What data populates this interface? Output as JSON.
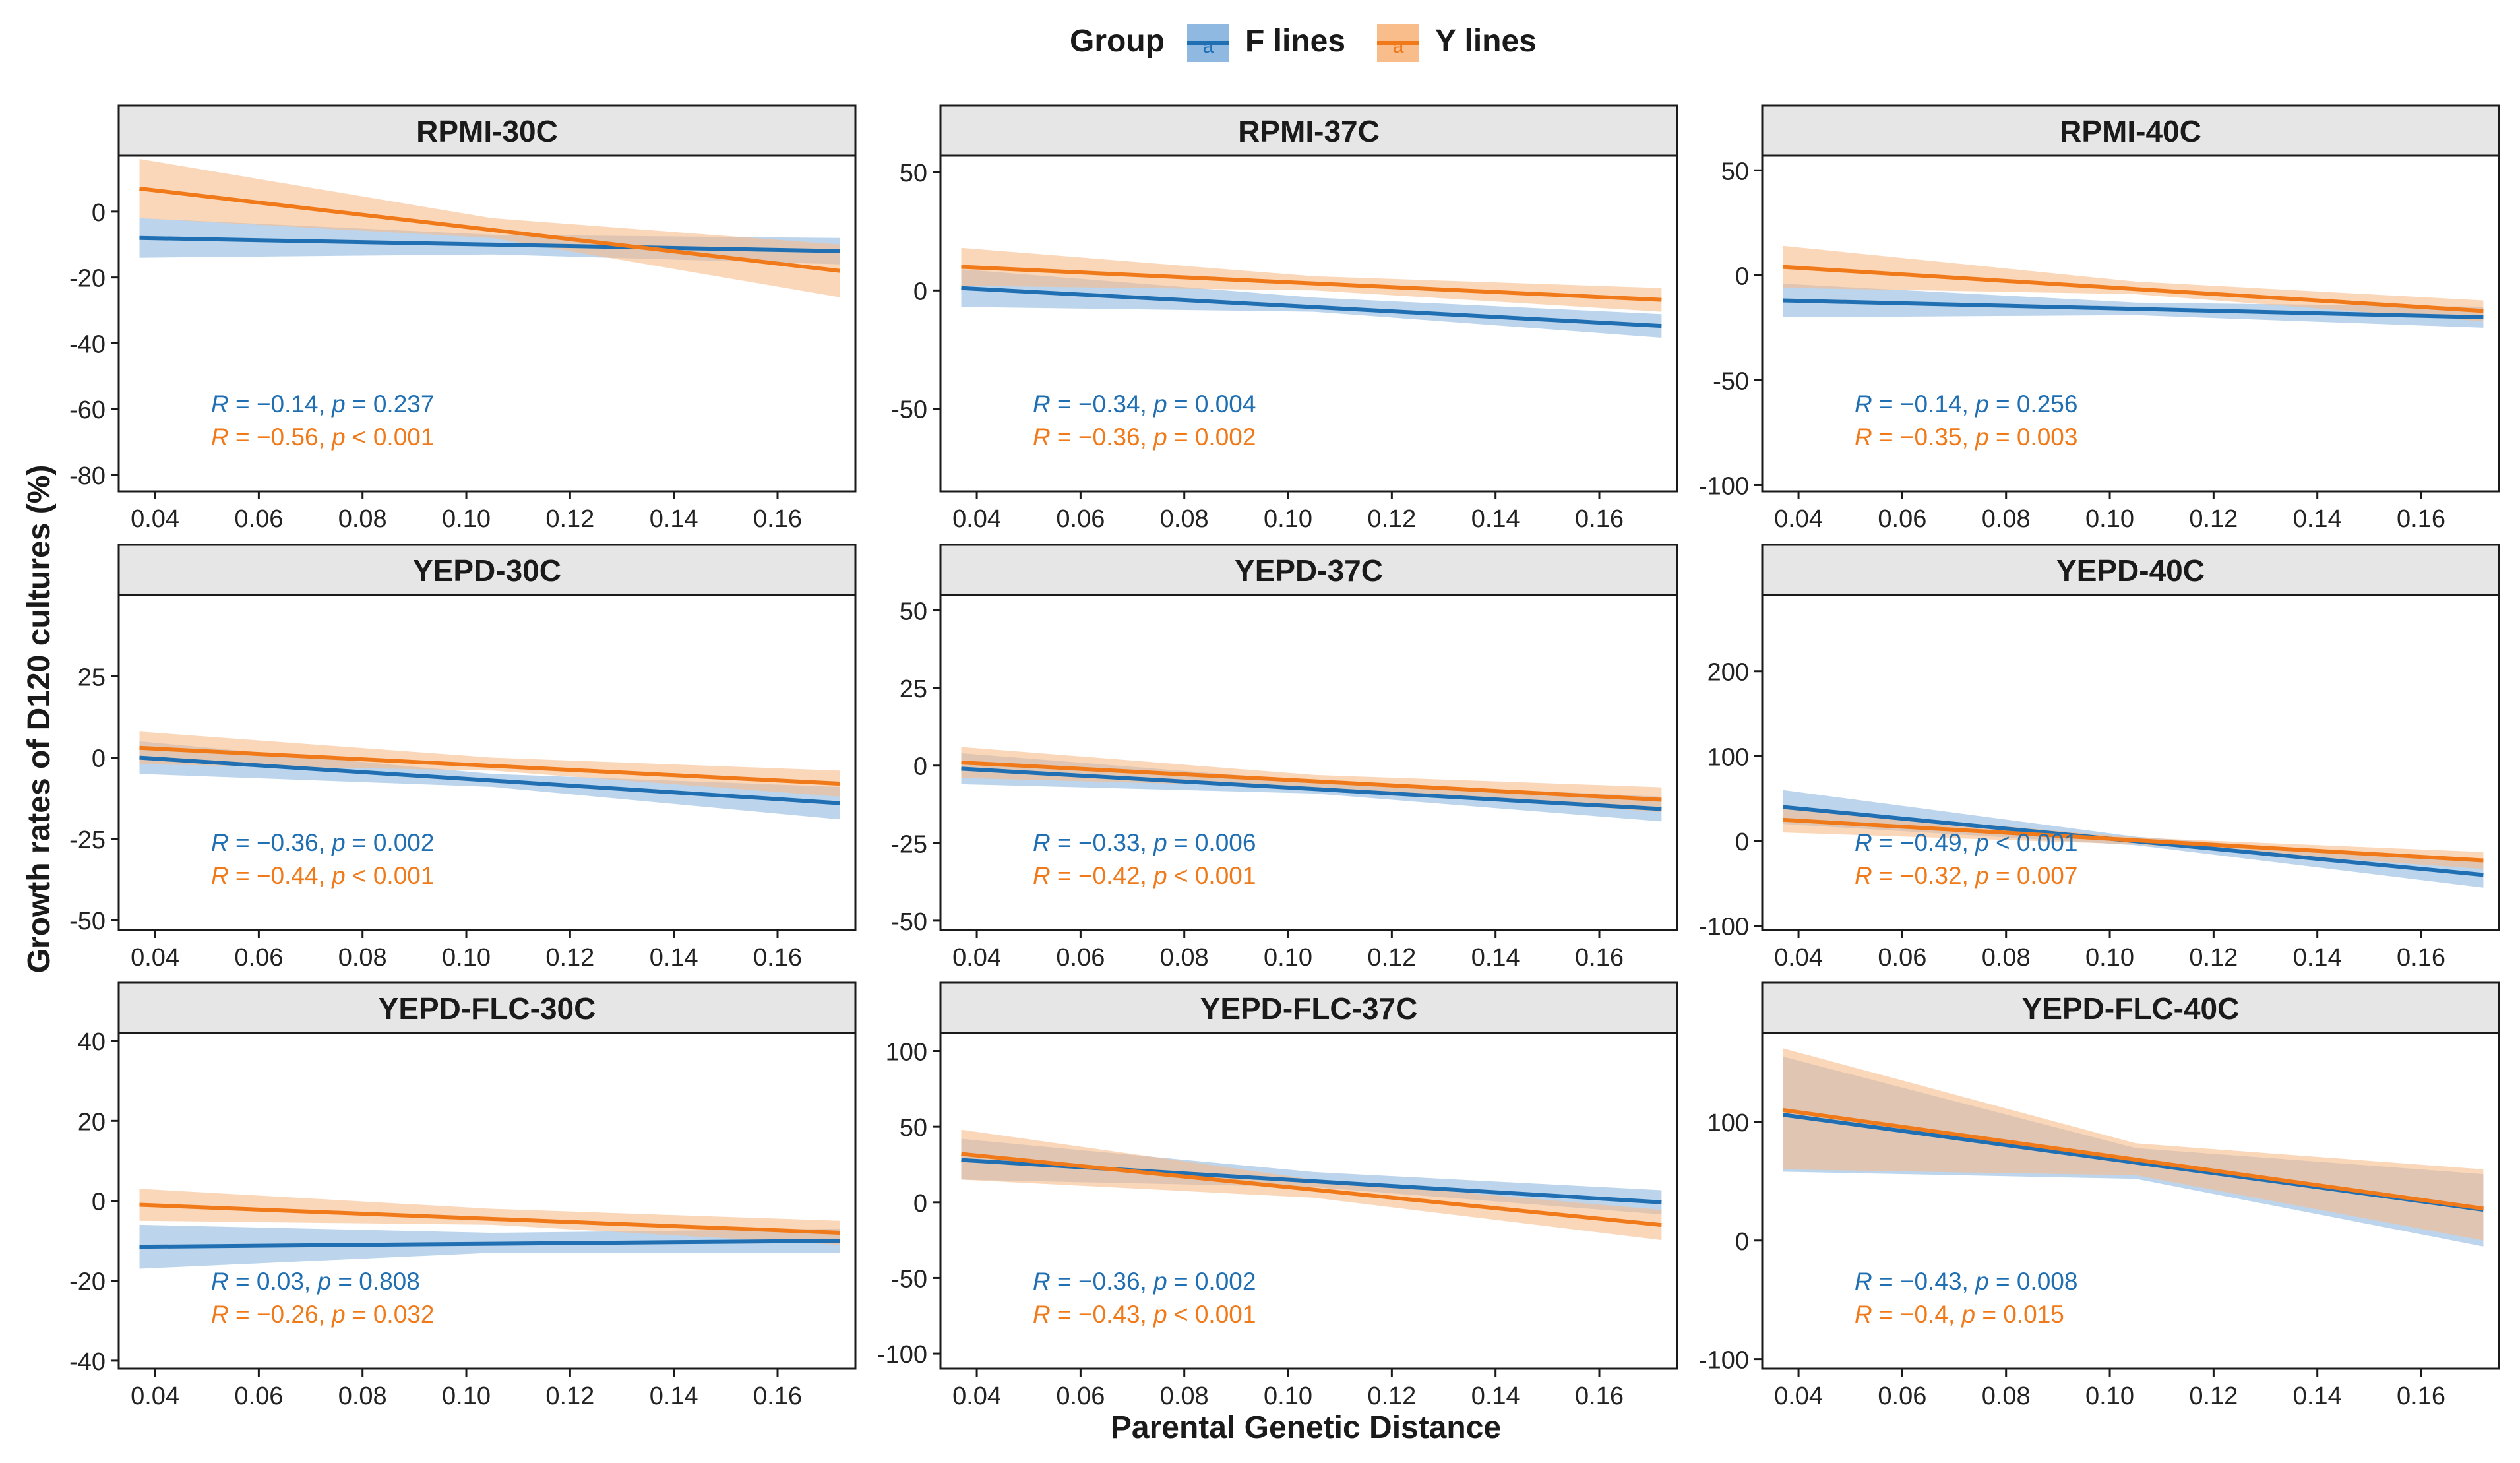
{
  "legend": {
    "title": "Group",
    "items": [
      {
        "label": "F lines",
        "color": "#1f6fb2",
        "fill": "#8fb9e0"
      },
      {
        "label": "Y lines",
        "color": "#f07a1a",
        "fill": "#f9bd8c"
      }
    ],
    "glyph": "a"
  },
  "y_axis_label": "Growth rates of D120 cultures (%)",
  "x_axis_label": "Parental Genetic Distance",
  "chart_data": [
    {
      "type": "scatter",
      "title": "RPMI-30C",
      "xlim": [
        0.033,
        0.175
      ],
      "ylim": [
        -85,
        17
      ],
      "xticks": [
        0.04,
        0.06,
        0.08,
        0.1,
        0.12,
        0.14,
        0.16
      ],
      "yticks": [
        0,
        -20,
        -40,
        -60,
        -80
      ],
      "series": [
        {
          "name": "F lines",
          "fit": [
            [
              0.037,
              -8
            ],
            [
              0.172,
              -12
            ]
          ],
          "ci": [
            [
              0.037,
              -14,
              -2
            ],
            [
              0.105,
              -13,
              -7
            ],
            [
              0.172,
              -16,
              -8
            ]
          ],
          "stat": {
            "R": "−0.14",
            "p": "= 0.237"
          }
        },
        {
          "name": "Y lines",
          "fit": [
            [
              0.037,
              7
            ],
            [
              0.172,
              -18
            ]
          ],
          "ci": [
            [
              0.037,
              -2,
              16
            ],
            [
              0.105,
              -8,
              -2
            ],
            [
              0.172,
              -26,
              -10
            ]
          ],
          "stat": {
            "R": "−0.56",
            "p": "< 0.001"
          }
        }
      ]
    },
    {
      "type": "scatter",
      "title": "RPMI-37C",
      "xlim": [
        0.033,
        0.175
      ],
      "ylim": [
        -85,
        57
      ],
      "xticks": [
        0.04,
        0.06,
        0.08,
        0.1,
        0.12,
        0.14,
        0.16
      ],
      "yticks": [
        50,
        0,
        -50
      ],
      "series": [
        {
          "name": "F lines",
          "fit": [
            [
              0.037,
              1
            ],
            [
              0.172,
              -15
            ]
          ],
          "ci": [
            [
              0.037,
              -7,
              9
            ],
            [
              0.105,
              -9,
              -3
            ],
            [
              0.172,
              -20,
              -10
            ]
          ],
          "stat": {
            "R": "−0.34",
            "p": "= 0.004"
          }
        },
        {
          "name": "Y lines",
          "fit": [
            [
              0.037,
              10
            ],
            [
              0.172,
              -4
            ]
          ],
          "ci": [
            [
              0.037,
              2,
              18
            ],
            [
              0.105,
              0,
              6
            ],
            [
              0.172,
              -9,
              1
            ]
          ],
          "stat": {
            "R": "−0.36",
            "p": "= 0.002"
          }
        }
      ]
    },
    {
      "type": "scatter",
      "title": "RPMI-40C",
      "xlim": [
        0.033,
        0.175
      ],
      "ylim": [
        -103,
        57
      ],
      "xticks": [
        0.04,
        0.06,
        0.08,
        0.1,
        0.12,
        0.14,
        0.16
      ],
      "yticks": [
        50,
        0,
        -50,
        -100
      ],
      "series": [
        {
          "name": "F lines",
          "fit": [
            [
              0.037,
              -12
            ],
            [
              0.172,
              -20
            ]
          ],
          "ci": [
            [
              0.037,
              -20,
              -4
            ],
            [
              0.105,
              -19,
              -13
            ],
            [
              0.172,
              -25,
              -15
            ]
          ],
          "stat": {
            "R": "−0.14",
            "p": "= 0.256"
          }
        },
        {
          "name": "Y lines",
          "fit": [
            [
              0.037,
              4
            ],
            [
              0.172,
              -17
            ]
          ],
          "ci": [
            [
              0.037,
              -6,
              14
            ],
            [
              0.105,
              -9,
              -3
            ],
            [
              0.172,
              -22,
              -12
            ]
          ],
          "stat": {
            "R": "−0.35",
            "p": "= 0.003"
          }
        }
      ]
    },
    {
      "type": "scatter",
      "title": "YEPD-30C",
      "xlim": [
        0.033,
        0.175
      ],
      "ylim": [
        -53,
        50
      ],
      "xticks": [
        0.04,
        0.06,
        0.08,
        0.1,
        0.12,
        0.14,
        0.16
      ],
      "yticks": [
        25,
        0,
        -25,
        -50
      ],
      "series": [
        {
          "name": "F lines",
          "fit": [
            [
              0.037,
              0
            ],
            [
              0.172,
              -14
            ]
          ],
          "ci": [
            [
              0.037,
              -5,
              5
            ],
            [
              0.105,
              -9,
              -5
            ],
            [
              0.172,
              -19,
              -9
            ]
          ],
          "stat": {
            "R": "−0.36",
            "p": "= 0.002"
          }
        },
        {
          "name": "Y lines",
          "fit": [
            [
              0.037,
              3
            ],
            [
              0.172,
              -8
            ]
          ],
          "ci": [
            [
              0.037,
              -2,
              8
            ],
            [
              0.105,
              -4,
              0
            ],
            [
              0.172,
              -12,
              -4
            ]
          ],
          "stat": {
            "R": "−0.44",
            "p": "< 0.001"
          }
        }
      ]
    },
    {
      "type": "scatter",
      "title": "YEPD-37C",
      "xlim": [
        0.033,
        0.175
      ],
      "ylim": [
        -53,
        55
      ],
      "xticks": [
        0.04,
        0.06,
        0.08,
        0.1,
        0.12,
        0.14,
        0.16
      ],
      "yticks": [
        50,
        25,
        0,
        -25,
        -50
      ],
      "series": [
        {
          "name": "F lines",
          "fit": [
            [
              0.037,
              -1
            ],
            [
              0.172,
              -14
            ]
          ],
          "ci": [
            [
              0.037,
              -6,
              4
            ],
            [
              0.105,
              -9,
              -5
            ],
            [
              0.172,
              -18,
              -10
            ]
          ],
          "stat": {
            "R": "−0.33",
            "p": "= 0.006"
          }
        },
        {
          "name": "Y lines",
          "fit": [
            [
              0.037,
              1
            ],
            [
              0.172,
              -11
            ]
          ],
          "ci": [
            [
              0.037,
              -4,
              6
            ],
            [
              0.105,
              -7,
              -3
            ],
            [
              0.172,
              -15,
              -7
            ]
          ],
          "stat": {
            "R": "−0.42",
            "p": "< 0.001"
          }
        }
      ]
    },
    {
      "type": "scatter",
      "title": "YEPD-40C",
      "xlim": [
        0.033,
        0.175
      ],
      "ylim": [
        -105,
        290
      ],
      "xticks": [
        0.04,
        0.06,
        0.08,
        0.1,
        0.12,
        0.14,
        0.16
      ],
      "yticks": [
        200,
        100,
        0,
        -100
      ],
      "series": [
        {
          "name": "F lines",
          "fit": [
            [
              0.037,
              40
            ],
            [
              0.172,
              -40
            ]
          ],
          "ci": [
            [
              0.037,
              20,
              60
            ],
            [
              0.105,
              -5,
              5
            ],
            [
              0.172,
              -55,
              -25
            ]
          ],
          "stat": {
            "R": "−0.49",
            "p": "< 0.001"
          }
        },
        {
          "name": "Y lines",
          "fit": [
            [
              0.037,
              25
            ],
            [
              0.172,
              -23
            ]
          ],
          "ci": [
            [
              0.037,
              10,
              40
            ],
            [
              0.105,
              -4,
              4
            ],
            [
              0.172,
              -33,
              -13
            ]
          ],
          "stat": {
            "R": "−0.32",
            "p": "= 0.007"
          }
        }
      ]
    },
    {
      "type": "scatter",
      "title": "YEPD-FLC-30C",
      "xlim": [
        0.033,
        0.175
      ],
      "ylim": [
        -42,
        42
      ],
      "xticks": [
        0.04,
        0.06,
        0.08,
        0.1,
        0.12,
        0.14,
        0.16
      ],
      "yticks": [
        40,
        20,
        0,
        -20,
        -40
      ],
      "series": [
        {
          "name": "F lines",
          "fit": [
            [
              0.037,
              -11.5
            ],
            [
              0.172,
              -10
            ]
          ],
          "ci": [
            [
              0.037,
              -17,
              -6
            ],
            [
              0.105,
              -13,
              -8
            ],
            [
              0.172,
              -13,
              -7
            ]
          ],
          "stat": {
            "R": "0.03",
            "p": "= 0.808"
          }
        },
        {
          "name": "Y lines",
          "fit": [
            [
              0.037,
              -1
            ],
            [
              0.172,
              -8
            ]
          ],
          "ci": [
            [
              0.037,
              -5,
              3
            ],
            [
              0.105,
              -6,
              -2
            ],
            [
              0.172,
              -11,
              -5
            ]
          ],
          "stat": {
            "R": "−0.26",
            "p": "= 0.032"
          }
        }
      ]
    },
    {
      "type": "scatter",
      "title": "YEPD-FLC-37C",
      "xlim": [
        0.033,
        0.175
      ],
      "ylim": [
        -110,
        112
      ],
      "xticks": [
        0.04,
        0.06,
        0.08,
        0.1,
        0.12,
        0.14,
        0.16
      ],
      "yticks": [
        100,
        50,
        0,
        -50,
        -100
      ],
      "series": [
        {
          "name": "F lines",
          "fit": [
            [
              0.037,
              28
            ],
            [
              0.172,
              0
            ]
          ],
          "ci": [
            [
              0.037,
              15,
              42
            ],
            [
              0.105,
              10,
              20
            ],
            [
              0.172,
              -8,
              8
            ]
          ],
          "stat": {
            "R": "−0.36",
            "p": "= 0.002"
          }
        },
        {
          "name": "Y lines",
          "fit": [
            [
              0.037,
              32
            ],
            [
              0.172,
              -15
            ]
          ],
          "ci": [
            [
              0.037,
              15,
              48
            ],
            [
              0.105,
              3,
              15
            ],
            [
              0.172,
              -25,
              -5
            ]
          ],
          "stat": {
            "R": "−0.43",
            "p": "< 0.001"
          }
        }
      ]
    },
    {
      "type": "scatter",
      "title": "YEPD-FLC-40C",
      "xlim": [
        0.033,
        0.175
      ],
      "ylim": [
        -108,
        175
      ],
      "xticks": [
        0.04,
        0.06,
        0.08,
        0.1,
        0.12,
        0.14,
        0.16
      ],
      "yticks": [
        100,
        0,
        -100
      ],
      "series": [
        {
          "name": "F lines",
          "fit": [
            [
              0.037,
              106
            ],
            [
              0.172,
              26
            ]
          ],
          "ci": [
            [
              0.037,
              58,
              155
            ],
            [
              0.105,
              52,
              78
            ],
            [
              0.172,
              -5,
              56
            ]
          ],
          "stat": {
            "R": "−0.43",
            "p": "= 0.008"
          }
        },
        {
          "name": "Y lines",
          "fit": [
            [
              0.037,
              110
            ],
            [
              0.172,
              27
            ]
          ],
          "ci": [
            [
              0.037,
              60,
              162
            ],
            [
              0.105,
              55,
              82
            ],
            [
              0.172,
              0,
              60
            ]
          ],
          "stat": {
            "R": "−0.4",
            "p": "= 0.015"
          }
        }
      ]
    }
  ]
}
